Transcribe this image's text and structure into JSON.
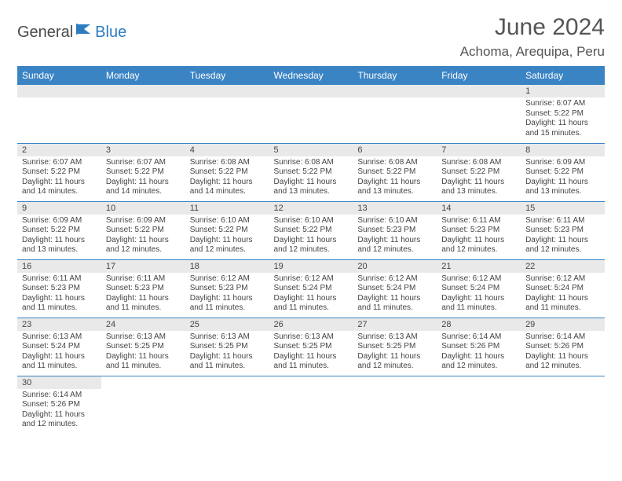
{
  "logo": {
    "text1": "General",
    "text2": "Blue"
  },
  "title": "June 2024",
  "location": "Achoma, Arequipa, Peru",
  "colors": {
    "header_bg": "#3b84c4",
    "header_fg": "#ffffff",
    "daynum_bg": "#e9e9e9",
    "border": "#3b84c4",
    "text": "#444444",
    "logo_gray": "#4a4a4a",
    "logo_blue": "#2e7cc0"
  },
  "dayNames": [
    "Sunday",
    "Monday",
    "Tuesday",
    "Wednesday",
    "Thursday",
    "Friday",
    "Saturday"
  ],
  "weeks": [
    [
      null,
      null,
      null,
      null,
      null,
      null,
      {
        "n": "1",
        "sr": "6:07 AM",
        "ss": "5:22 PM",
        "dl": "11 hours and 15 minutes."
      }
    ],
    [
      {
        "n": "2",
        "sr": "6:07 AM",
        "ss": "5:22 PM",
        "dl": "11 hours and 14 minutes."
      },
      {
        "n": "3",
        "sr": "6:07 AM",
        "ss": "5:22 PM",
        "dl": "11 hours and 14 minutes."
      },
      {
        "n": "4",
        "sr": "6:08 AM",
        "ss": "5:22 PM",
        "dl": "11 hours and 14 minutes."
      },
      {
        "n": "5",
        "sr": "6:08 AM",
        "ss": "5:22 PM",
        "dl": "11 hours and 13 minutes."
      },
      {
        "n": "6",
        "sr": "6:08 AM",
        "ss": "5:22 PM",
        "dl": "11 hours and 13 minutes."
      },
      {
        "n": "7",
        "sr": "6:08 AM",
        "ss": "5:22 PM",
        "dl": "11 hours and 13 minutes."
      },
      {
        "n": "8",
        "sr": "6:09 AM",
        "ss": "5:22 PM",
        "dl": "11 hours and 13 minutes."
      }
    ],
    [
      {
        "n": "9",
        "sr": "6:09 AM",
        "ss": "5:22 PM",
        "dl": "11 hours and 13 minutes."
      },
      {
        "n": "10",
        "sr": "6:09 AM",
        "ss": "5:22 PM",
        "dl": "11 hours and 12 minutes."
      },
      {
        "n": "11",
        "sr": "6:10 AM",
        "ss": "5:22 PM",
        "dl": "11 hours and 12 minutes."
      },
      {
        "n": "12",
        "sr": "6:10 AM",
        "ss": "5:22 PM",
        "dl": "11 hours and 12 minutes."
      },
      {
        "n": "13",
        "sr": "6:10 AM",
        "ss": "5:23 PM",
        "dl": "11 hours and 12 minutes."
      },
      {
        "n": "14",
        "sr": "6:11 AM",
        "ss": "5:23 PM",
        "dl": "11 hours and 12 minutes."
      },
      {
        "n": "15",
        "sr": "6:11 AM",
        "ss": "5:23 PM",
        "dl": "11 hours and 12 minutes."
      }
    ],
    [
      {
        "n": "16",
        "sr": "6:11 AM",
        "ss": "5:23 PM",
        "dl": "11 hours and 11 minutes."
      },
      {
        "n": "17",
        "sr": "6:11 AM",
        "ss": "5:23 PM",
        "dl": "11 hours and 11 minutes."
      },
      {
        "n": "18",
        "sr": "6:12 AM",
        "ss": "5:23 PM",
        "dl": "11 hours and 11 minutes."
      },
      {
        "n": "19",
        "sr": "6:12 AM",
        "ss": "5:24 PM",
        "dl": "11 hours and 11 minutes."
      },
      {
        "n": "20",
        "sr": "6:12 AM",
        "ss": "5:24 PM",
        "dl": "11 hours and 11 minutes."
      },
      {
        "n": "21",
        "sr": "6:12 AM",
        "ss": "5:24 PM",
        "dl": "11 hours and 11 minutes."
      },
      {
        "n": "22",
        "sr": "6:12 AM",
        "ss": "5:24 PM",
        "dl": "11 hours and 11 minutes."
      }
    ],
    [
      {
        "n": "23",
        "sr": "6:13 AM",
        "ss": "5:24 PM",
        "dl": "11 hours and 11 minutes."
      },
      {
        "n": "24",
        "sr": "6:13 AM",
        "ss": "5:25 PM",
        "dl": "11 hours and 11 minutes."
      },
      {
        "n": "25",
        "sr": "6:13 AM",
        "ss": "5:25 PM",
        "dl": "11 hours and 11 minutes."
      },
      {
        "n": "26",
        "sr": "6:13 AM",
        "ss": "5:25 PM",
        "dl": "11 hours and 11 minutes."
      },
      {
        "n": "27",
        "sr": "6:13 AM",
        "ss": "5:25 PM",
        "dl": "11 hours and 12 minutes."
      },
      {
        "n": "28",
        "sr": "6:14 AM",
        "ss": "5:26 PM",
        "dl": "11 hours and 12 minutes."
      },
      {
        "n": "29",
        "sr": "6:14 AM",
        "ss": "5:26 PM",
        "dl": "11 hours and 12 minutes."
      }
    ],
    [
      {
        "n": "30",
        "sr": "6:14 AM",
        "ss": "5:26 PM",
        "dl": "11 hours and 12 minutes."
      },
      null,
      null,
      null,
      null,
      null,
      null
    ]
  ],
  "labels": {
    "sunrise": "Sunrise:",
    "sunset": "Sunset:",
    "daylight": "Daylight:"
  }
}
